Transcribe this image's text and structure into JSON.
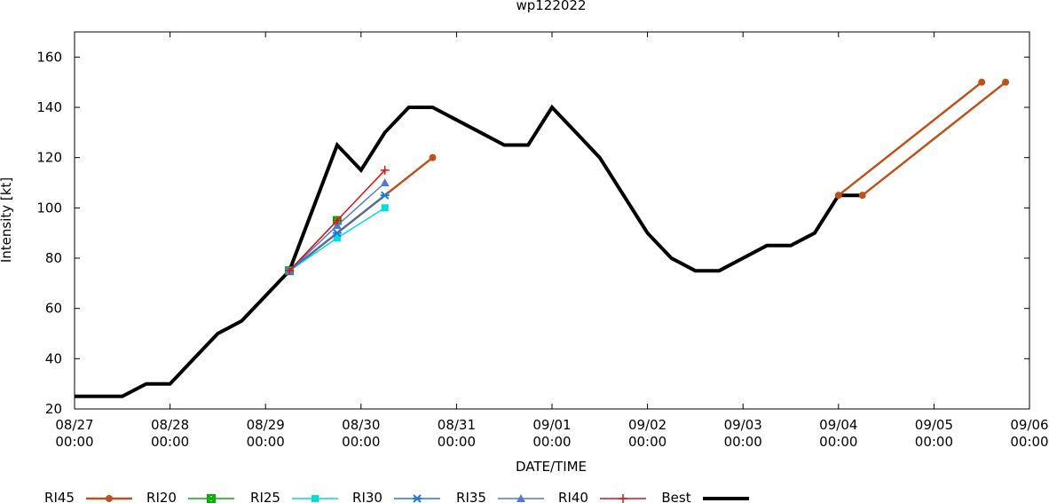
{
  "chart_data": {
    "type": "line",
    "title": "wp122022",
    "xlabel": "DATE/TIME",
    "ylabel": "Intensity [kt]",
    "x_unit": "UTC date/time",
    "xlim": [
      "2022-08-27T00:00",
      "2022-09-06T00:00"
    ],
    "ylim": [
      20,
      170
    ],
    "x_ticks": [
      {
        "date": "08/27",
        "time": "00:00"
      },
      {
        "date": "08/28",
        "time": "00:00"
      },
      {
        "date": "08/29",
        "time": "00:00"
      },
      {
        "date": "08/30",
        "time": "00:00"
      },
      {
        "date": "08/31",
        "time": "00:00"
      },
      {
        "date": "09/01",
        "time": "00:00"
      },
      {
        "date": "09/02",
        "time": "00:00"
      },
      {
        "date": "09/03",
        "time": "00:00"
      },
      {
        "date": "09/04",
        "time": "00:00"
      },
      {
        "date": "09/05",
        "time": "00:00"
      },
      {
        "date": "09/06",
        "time": "00:00"
      }
    ],
    "y_ticks": [
      20,
      40,
      60,
      80,
      100,
      120,
      140,
      160
    ],
    "grid": false,
    "legend_position": "bottom",
    "series": [
      {
        "name": "RI45",
        "color": "#c0501a",
        "marker": "circle",
        "segments": [
          [
            {
              "x": "2022-08-29T06:00",
              "y": 75
            },
            {
              "x": "2022-08-30T18:00",
              "y": 120
            }
          ],
          [
            {
              "x": "2022-09-04T00:00",
              "y": 105
            },
            {
              "x": "2022-09-05T12:00",
              "y": 150
            }
          ],
          [
            {
              "x": "2022-09-04T06:00",
              "y": 105
            },
            {
              "x": "2022-09-05T18:00",
              "y": 150
            }
          ]
        ]
      },
      {
        "name": "RI20",
        "color": "#00b000",
        "marker": "x-square",
        "segments": [
          [
            {
              "x": "2022-08-29T06:00",
              "y": 75
            },
            {
              "x": "2022-08-29T18:00",
              "y": 95
            }
          ]
        ]
      },
      {
        "name": "RI25",
        "color": "#00dcdc",
        "marker": "square",
        "segments": [
          [
            {
              "x": "2022-08-29T06:00",
              "y": 75
            },
            {
              "x": "2022-08-29T18:00",
              "y": 88
            },
            {
              "x": "2022-08-30T06:00",
              "y": 100
            }
          ]
        ]
      },
      {
        "name": "RI30",
        "color": "#1e78dc",
        "marker": "asterisk",
        "segments": [
          [
            {
              "x": "2022-08-29T06:00",
              "y": 75
            },
            {
              "x": "2022-08-29T18:00",
              "y": 90
            },
            {
              "x": "2022-08-30T06:00",
              "y": 105
            }
          ]
        ]
      },
      {
        "name": "RI35",
        "color": "#5078dc",
        "marker": "triangle",
        "segments": [
          [
            {
              "x": "2022-08-29T06:00",
              "y": 75
            },
            {
              "x": "2022-08-29T18:00",
              "y": 93
            },
            {
              "x": "2022-08-30T06:00",
              "y": 110
            }
          ]
        ]
      },
      {
        "name": "RI40",
        "color": "#e01010",
        "marker": "plus",
        "segments": [
          [
            {
              "x": "2022-08-29T06:00",
              "y": 75
            },
            {
              "x": "2022-08-29T18:00",
              "y": 95
            },
            {
              "x": "2022-08-30T06:00",
              "y": 115
            }
          ]
        ]
      },
      {
        "name": "Best",
        "color": "#000000",
        "marker": "none",
        "segments": [
          [
            {
              "x": "2022-08-27T00:00",
              "y": 25
            },
            {
              "x": "2022-08-27T12:00",
              "y": 25
            },
            {
              "x": "2022-08-27T18:00",
              "y": 30
            },
            {
              "x": "2022-08-28T00:00",
              "y": 30
            },
            {
              "x": "2022-08-28T06:00",
              "y": 40
            },
            {
              "x": "2022-08-28T12:00",
              "y": 50
            },
            {
              "x": "2022-08-28T18:00",
              "y": 55
            },
            {
              "x": "2022-08-29T00:00",
              "y": 65
            },
            {
              "x": "2022-08-29T06:00",
              "y": 75
            },
            {
              "x": "2022-08-29T12:00",
              "y": 100
            },
            {
              "x": "2022-08-29T18:00",
              "y": 125
            },
            {
              "x": "2022-08-30T00:00",
              "y": 115
            },
            {
              "x": "2022-08-30T06:00",
              "y": 130
            },
            {
              "x": "2022-08-30T12:00",
              "y": 140
            },
            {
              "x": "2022-08-30T18:00",
              "y": 140
            },
            {
              "x": "2022-08-31T00:00",
              "y": 135
            },
            {
              "x": "2022-08-31T06:00",
              "y": 130
            },
            {
              "x": "2022-08-31T12:00",
              "y": 125
            },
            {
              "x": "2022-08-31T18:00",
              "y": 125
            },
            {
              "x": "2022-09-01T00:00",
              "y": 140
            },
            {
              "x": "2022-09-01T06:00",
              "y": 130
            },
            {
              "x": "2022-09-01T12:00",
              "y": 120
            },
            {
              "x": "2022-09-01T18:00",
              "y": 105
            },
            {
              "x": "2022-09-02T00:00",
              "y": 90
            },
            {
              "x": "2022-09-02T06:00",
              "y": 80
            },
            {
              "x": "2022-09-02T12:00",
              "y": 75
            },
            {
              "x": "2022-09-02T18:00",
              "y": 75
            },
            {
              "x": "2022-09-03T00:00",
              "y": 80
            },
            {
              "x": "2022-09-03T06:00",
              "y": 85
            },
            {
              "x": "2022-09-03T12:00",
              "y": 85
            },
            {
              "x": "2022-09-03T18:00",
              "y": 90
            },
            {
              "x": "2022-09-04T00:00",
              "y": 105
            },
            {
              "x": "2022-09-04T06:00",
              "y": 105
            }
          ]
        ]
      }
    ]
  }
}
